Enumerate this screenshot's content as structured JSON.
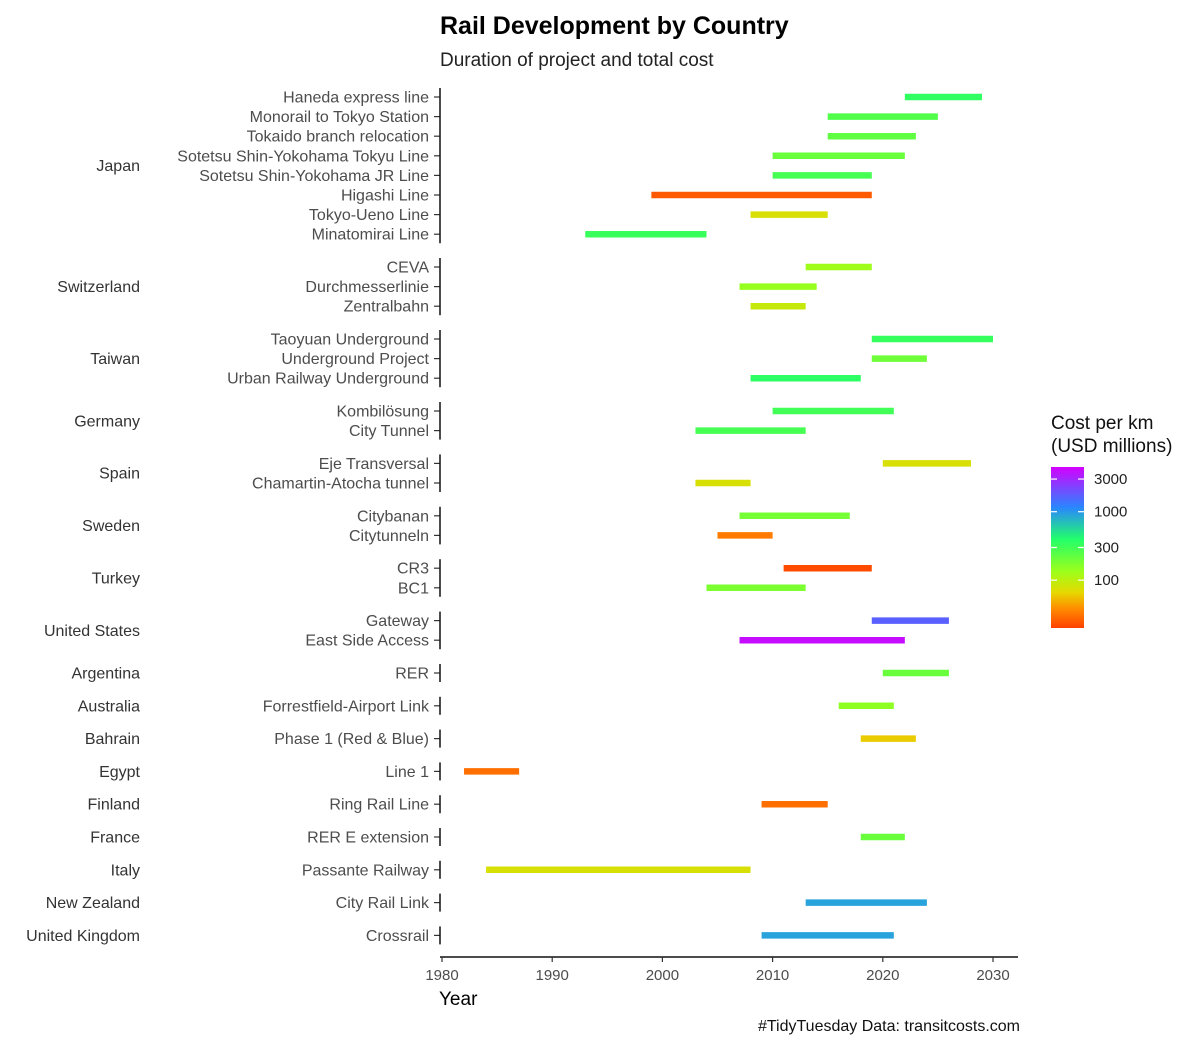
{
  "title": "Rail Development by Country",
  "subtitle": "Duration of project and total cost",
  "caption": "#TidyTuesday Data: transitcosts.com",
  "chart_data": {
    "type": "bar",
    "orientation": "horizontal-range",
    "title": "Rail Development by Country",
    "subtitle": "Duration of project and total cost",
    "xlabel": "Year",
    "ylabel": "",
    "xlim": [
      1980,
      2032
    ],
    "xticks": [
      1980,
      1990,
      2000,
      2010,
      2020,
      2030
    ],
    "grid": false,
    "legend": {
      "title_line1": "Cost per km",
      "title_line2": "(USD millions)",
      "placement": "right",
      "scale": "log",
      "ticks": [
        "3000",
        "1000",
        "300",
        "100"
      ],
      "tick_values": [
        3000,
        1000,
        300,
        100
      ],
      "range": [
        20,
        4500
      ]
    },
    "groups": [
      {
        "country": "Japan",
        "projects": [
          {
            "name": "Haneda express line",
            "start": 2022,
            "end": 2029,
            "cost": 350
          },
          {
            "name": "Monorail to Tokyo Station",
            "start": 2015,
            "end": 2025,
            "cost": 260
          },
          {
            "name": "Tokaido branch relocation",
            "start": 2015,
            "end": 2023,
            "cost": 230
          },
          {
            "name": "Sotetsu Shin-Yokohama Tokyu Line",
            "start": 2010,
            "end": 2022,
            "cost": 210
          },
          {
            "name": "Sotetsu Shin-Yokohama JR Line",
            "start": 2010,
            "end": 2019,
            "cost": 290
          },
          {
            "name": "Higashi Line",
            "start": 1999,
            "end": 2019,
            "cost": 25
          },
          {
            "name": "Tokyo-Ueno Line",
            "start": 2008,
            "end": 2015,
            "cost": 75
          },
          {
            "name": "Minatomirai Line",
            "start": 1993,
            "end": 2004,
            "cost": 320
          }
        ]
      },
      {
        "country": "Switzerland",
        "projects": [
          {
            "name": "CEVA",
            "start": 2013,
            "end": 2019,
            "cost": 130
          },
          {
            "name": "Durchmesserlinie",
            "start": 2007,
            "end": 2014,
            "cost": 140
          },
          {
            "name": "Zentralbahn",
            "start": 2008,
            "end": 2013,
            "cost": 90
          }
        ]
      },
      {
        "country": "Taiwan",
        "projects": [
          {
            "name": "Taoyuan Underground",
            "start": 2019,
            "end": 2030,
            "cost": 330
          },
          {
            "name": "Underground Project",
            "start": 2019,
            "end": 2024,
            "cost": 200
          },
          {
            "name": "Urban Railway Underground",
            "start": 2008,
            "end": 2018,
            "cost": 360
          }
        ]
      },
      {
        "country": "Germany",
        "projects": [
          {
            "name": "Kombilösung",
            "start": 2010,
            "end": 2021,
            "cost": 300
          },
          {
            "name": "City Tunnel",
            "start": 2003,
            "end": 2013,
            "cost": 290
          }
        ]
      },
      {
        "country": "Spain",
        "projects": [
          {
            "name": "Eje Transversal",
            "start": 2020,
            "end": 2028,
            "cost": 75
          },
          {
            "name": "Chamartin-Atocha tunnel",
            "start": 2003,
            "end": 2008,
            "cost": 75
          }
        ]
      },
      {
        "country": "Sweden",
        "projects": [
          {
            "name": "Citybanan",
            "start": 2007,
            "end": 2017,
            "cost": 190
          },
          {
            "name": "Citytunneln",
            "start": 2005,
            "end": 2010,
            "cost": 33
          }
        ]
      },
      {
        "country": "Turkey",
        "projects": [
          {
            "name": "CR3",
            "start": 2011,
            "end": 2019,
            "cost": 22
          },
          {
            "name": "BC1",
            "start": 2004,
            "end": 2013,
            "cost": 180
          }
        ]
      },
      {
        "country": "United States",
        "projects": [
          {
            "name": "Gateway",
            "start": 2019,
            "end": 2026,
            "cost": 1700
          },
          {
            "name": "East Side Access",
            "start": 2007,
            "end": 2022,
            "cost": 4000
          }
        ]
      },
      {
        "country": "Argentina",
        "projects": [
          {
            "name": "RER",
            "start": 2020,
            "end": 2026,
            "cost": 210
          }
        ]
      },
      {
        "country": "Australia",
        "projects": [
          {
            "name": "Forrestfield-Airport Link",
            "start": 2016,
            "end": 2021,
            "cost": 150
          }
        ]
      },
      {
        "country": "Bahrain",
        "projects": [
          {
            "name": "Phase 1 (Red & Blue)",
            "start": 2018,
            "end": 2023,
            "cost": 60
          }
        ]
      },
      {
        "country": "Egypt",
        "projects": [
          {
            "name": "Line 1",
            "start": 1982,
            "end": 1987,
            "cost": 30
          }
        ]
      },
      {
        "country": "Finland",
        "projects": [
          {
            "name": "Ring Rail Line",
            "start": 2009,
            "end": 2015,
            "cost": 30
          }
        ]
      },
      {
        "country": "France",
        "projects": [
          {
            "name": "RER E extension",
            "start": 2018,
            "end": 2022,
            "cost": 210
          }
        ]
      },
      {
        "country": "Italy",
        "projects": [
          {
            "name": "Passante Railway",
            "start": 1984,
            "end": 2008,
            "cost": 75
          }
        ]
      },
      {
        "country": "New Zealand",
        "projects": [
          {
            "name": "City Rail Link",
            "start": 2013,
            "end": 2024,
            "cost": 900
          }
        ]
      },
      {
        "country": "United Kingdom",
        "projects": [
          {
            "name": "Crossrail",
            "start": 2009,
            "end": 2021,
            "cost": 900
          }
        ]
      }
    ]
  }
}
